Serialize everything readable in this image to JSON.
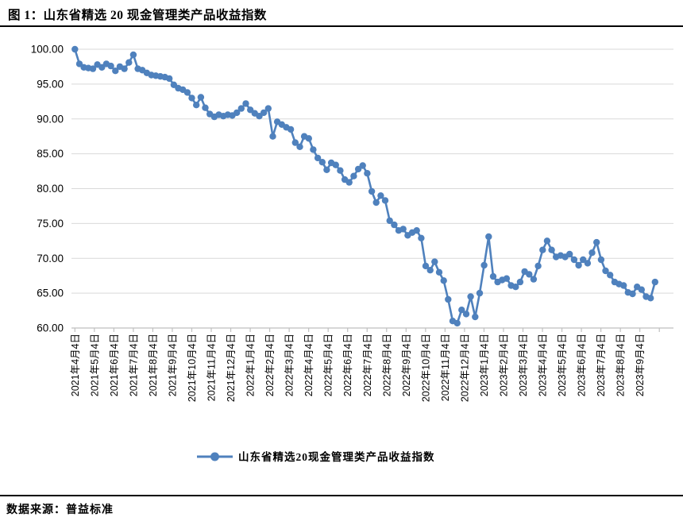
{
  "figure": {
    "title": "图 1：山东省精选 20 现金管理类产品收益指数",
    "source": "数据来源：普益标准"
  },
  "chart_data": {
    "type": "line",
    "title": "山东省精选20现金管理类产品收益指数",
    "legend_label": "山东省精选20现金管理类产品收益指数",
    "legend_position": "bottom",
    "grid": true,
    "colors": {
      "series": "#4f81bd",
      "gridline": "#d9d9d9",
      "axis": "#bfbfbf",
      "text": "#000000"
    },
    "y_axis": {
      "min": 60,
      "max": 100,
      "step": 5,
      "tick_labels": [
        "100.00",
        "95.00",
        "90.00",
        "85.00",
        "80.00",
        "75.00",
        "70.00",
        "65.00",
        "60.00"
      ]
    },
    "x_axis": {
      "start_date": "2021-04-04",
      "interval": "weekly",
      "labels": [
        "2021年4月4日",
        "2021年5月4日",
        "2021年6月4日",
        "2021年7月4日",
        "2021年8月4日",
        "2021年9月4日",
        "2021年10月4日",
        "2021年11月4日",
        "2021年12月4日",
        "2022年1月4日",
        "2022年2月4日",
        "2022年3月4日",
        "2022年4月4日",
        "2022年5月4日",
        "2022年6月4日",
        "2022年7月4日",
        "2022年8月4日",
        "2022年9月4日",
        "2022年10月4日",
        "2022年11月4日",
        "2022年12月4日",
        "2023年1月4日",
        "2023年2月4日",
        "2023年3月4日",
        "2023年4月4日",
        "2023年5月4日",
        "2023年6月4日",
        "2023年7月4日",
        "2023年8月4日",
        "2023年9月4日"
      ]
    },
    "series": [
      {
        "name": "山东省精选20现金管理类产品收益指数",
        "color": "#4f81bd",
        "marker": "circle",
        "values": [
          100.0,
          97.9,
          97.4,
          97.3,
          97.2,
          97.8,
          97.4,
          97.9,
          97.6,
          96.9,
          97.5,
          97.2,
          98.1,
          99.2,
          97.2,
          97.0,
          96.6,
          96.3,
          96.2,
          96.1,
          96.0,
          95.8,
          94.9,
          94.4,
          94.2,
          93.8,
          93.0,
          92.0,
          93.1,
          91.6,
          90.7,
          90.3,
          90.6,
          90.4,
          90.6,
          90.5,
          90.9,
          91.5,
          92.2,
          91.3,
          90.8,
          90.4,
          90.9,
          91.5,
          87.5,
          89.6,
          89.2,
          88.8,
          88.5,
          86.6,
          86.0,
          87.5,
          87.2,
          85.6,
          84.4,
          83.8,
          82.7,
          83.7,
          83.4,
          82.6,
          81.3,
          80.9,
          81.8,
          82.8,
          83.3,
          82.2,
          79.6,
          78.0,
          79.0,
          78.3,
          75.4,
          74.8,
          74.0,
          74.2,
          73.3,
          73.7,
          74.0,
          72.9,
          68.9,
          68.3,
          69.5,
          68.0,
          66.8,
          64.1,
          61.0,
          60.7,
          62.6,
          62.0,
          64.5,
          61.6,
          65.0,
          69.0,
          73.1,
          67.4,
          66.6,
          66.9,
          67.1,
          66.1,
          65.9,
          66.6,
          68.1,
          67.7,
          67.0,
          68.9,
          71.2,
          72.5,
          71.2,
          70.2,
          70.4,
          70.2,
          70.6,
          69.8,
          69.0,
          69.8,
          69.3,
          70.8,
          72.3,
          69.8,
          68.2,
          67.6,
          66.6,
          66.3,
          66.1,
          65.1,
          64.9,
          65.9,
          65.5,
          64.5,
          64.3,
          66.6
        ]
      }
    ]
  }
}
